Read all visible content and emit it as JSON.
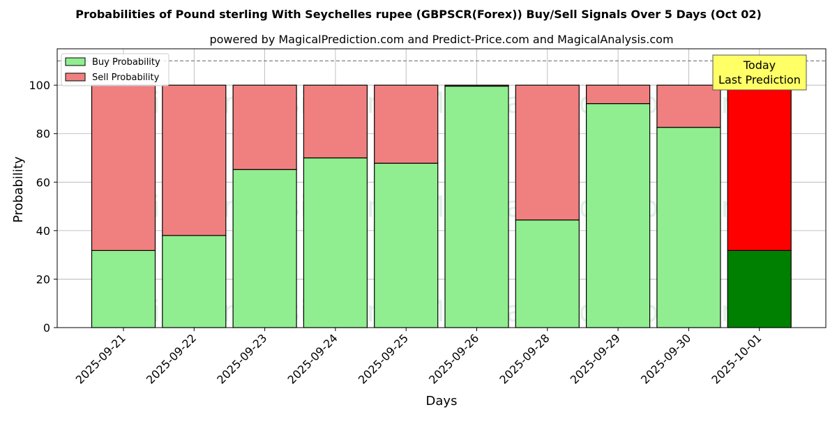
{
  "chart_data": {
    "type": "bar",
    "stacked": true,
    "title": "Probabilities of Pound sterling With Seychelles rupee (GBPSCR(Forex)) Buy/Sell Signals Over 5 Days (Oct 02)",
    "subtitle": "powered by MagicalPrediction.com and Predict-Price.com and MagicalAnalysis.com",
    "xlabel": "Days",
    "ylabel": "Probability",
    "ylim": [
      0,
      115
    ],
    "yticks": [
      0,
      20,
      40,
      60,
      80,
      100
    ],
    "grid": true,
    "legend_position": "top-left",
    "reference_line": 110,
    "categories": [
      "2025-09-21",
      "2025-09-22",
      "2025-09-23",
      "2025-09-24",
      "2025-09-25",
      "2025-09-26",
      "2025-09-28",
      "2025-09-29",
      "2025-09-30",
      "2025-10-01"
    ],
    "series": [
      {
        "name": "Buy Probability",
        "values": [
          31.8,
          38.0,
          65.2,
          70.0,
          67.8,
          99.6,
          44.4,
          92.4,
          82.6,
          31.8
        ],
        "color": "#90ee90",
        "highlight_color": "#008000"
      },
      {
        "name": "Sell Probability",
        "values": [
          68.2,
          62.0,
          34.8,
          30.0,
          32.2,
          0.4,
          55.6,
          7.6,
          17.4,
          68.2
        ],
        "color": "#f08080",
        "highlight_color": "#ff0000"
      }
    ],
    "highlight_index": 9,
    "annotation": {
      "lines": [
        "Today",
        "Last Prediction"
      ],
      "background": "#ffff66"
    },
    "watermarks": [
      "MagicalAnalysis.com",
      "MagicalPrediction.com"
    ]
  }
}
